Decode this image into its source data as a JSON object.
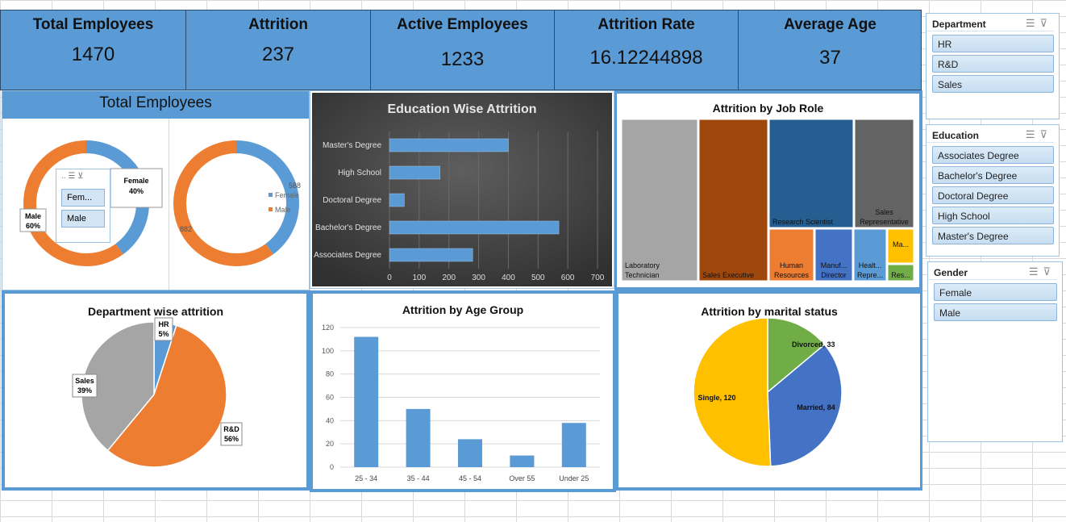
{
  "kpis": [
    {
      "title": "Total Employees",
      "value": "1470"
    },
    {
      "title": "Attrition",
      "value": "237"
    },
    {
      "title": "Active Employees",
      "value": "1233"
    },
    {
      "title": "Attrition Rate",
      "value": "16.12244898"
    },
    {
      "title": "Average Age",
      "value": "37"
    }
  ],
  "total_employees_panel": {
    "title": "Total Employees",
    "mini_slicer": {
      "items": [
        "Fem...",
        "Male"
      ]
    },
    "donut1_labels": {
      "female": "Female",
      "female_pct": "40%",
      "male": "Male",
      "male_pct": "60%"
    },
    "donut2_legend": {
      "female": "Female",
      "male": "Male",
      "female_value": "588",
      "male_value": "882"
    }
  },
  "slicers": {
    "department": {
      "title": "Department",
      "items": [
        "HR",
        "R&D",
        "Sales"
      ]
    },
    "education": {
      "title": "Education",
      "items": [
        "Associates Degree",
        "Bachelor's Degree",
        "Doctoral Degree",
        "High School",
        "Master's Degree"
      ]
    },
    "gender": {
      "title": "Gender",
      "items": [
        "Female",
        "Male"
      ]
    }
  },
  "colors": {
    "blue": "#5b9bd5",
    "orange": "#ed7d31",
    "gray": "#a5a5a5",
    "yellow": "#ffc000",
    "green": "#70ad47",
    "darkblue": "#4472c4"
  },
  "chart_data": [
    {
      "id": "gender_donut_pct",
      "type": "pie",
      "categories": [
        "Female",
        "Male"
      ],
      "values": [
        40,
        60
      ],
      "title": ""
    },
    {
      "id": "gender_donut_count",
      "type": "pie",
      "categories": [
        "Female",
        "Male"
      ],
      "values": [
        588,
        882
      ],
      "title": ""
    },
    {
      "id": "education_attrition",
      "type": "bar",
      "title": "Education Wise Attrition",
      "categories": [
        "Master's Degree",
        "High School",
        "Doctoral Degree",
        "Bachelor's Degree",
        "Associates Degree"
      ],
      "values": [
        400,
        170,
        50,
        570,
        280
      ],
      "xlim": [
        0,
        700
      ],
      "ticks": [
        "0",
        "100",
        "200",
        "300",
        "400",
        "500",
        "600",
        "700"
      ],
      "grid": true
    },
    {
      "id": "job_role_treemap",
      "type": "treemap",
      "title": "Attrition by Job Role",
      "items": [
        {
          "label": "Laboratory Technician",
          "value": 62,
          "color": "#a5a5a5"
        },
        {
          "label": "Sales Executive",
          "value": 57,
          "color": "#9e480e"
        },
        {
          "label": "Research Scientist",
          "value": 47,
          "color": "#255e91"
        },
        {
          "label": "Sales Representative",
          "value": 33,
          "color": "#636363"
        },
        {
          "label": "Human Resources",
          "value": 12,
          "color": "#ed7d31"
        },
        {
          "label": "Manuf... Director",
          "value": 10,
          "color": "#4472c4"
        },
        {
          "label": "Healt... Repre...",
          "value": 9,
          "color": "#5b9bd5"
        },
        {
          "label": "Ma...",
          "value": 5,
          "color": "#ffc000"
        },
        {
          "label": "Res...",
          "value": 2,
          "color": "#70ad47"
        }
      ]
    },
    {
      "id": "department_attrition",
      "type": "pie",
      "title": "Department wise attrition",
      "categories": [
        "HR",
        "R&D",
        "Sales"
      ],
      "values": [
        5,
        56,
        39
      ],
      "labels": [
        "5%",
        "56%",
        "39%"
      ]
    },
    {
      "id": "age_group_attrition",
      "type": "bar",
      "title": "Attrition by Age Group",
      "categories": [
        "25 - 34",
        "35 - 44",
        "45 - 54",
        "Over 55",
        "Under 25"
      ],
      "values": [
        112,
        50,
        24,
        10,
        38
      ],
      "ylim": [
        0,
        120
      ],
      "ticks": [
        "0",
        "20",
        "40",
        "60",
        "80",
        "100",
        "120"
      ],
      "grid": true
    },
    {
      "id": "marital_attrition",
      "type": "pie",
      "title": "Attrition by marital status",
      "categories": [
        "Divorced",
        "Married",
        "Single"
      ],
      "values": [
        33,
        84,
        120
      ],
      "labels": [
        "Divorced, 33",
        "Married, 84",
        "Single, 120"
      ]
    }
  ]
}
